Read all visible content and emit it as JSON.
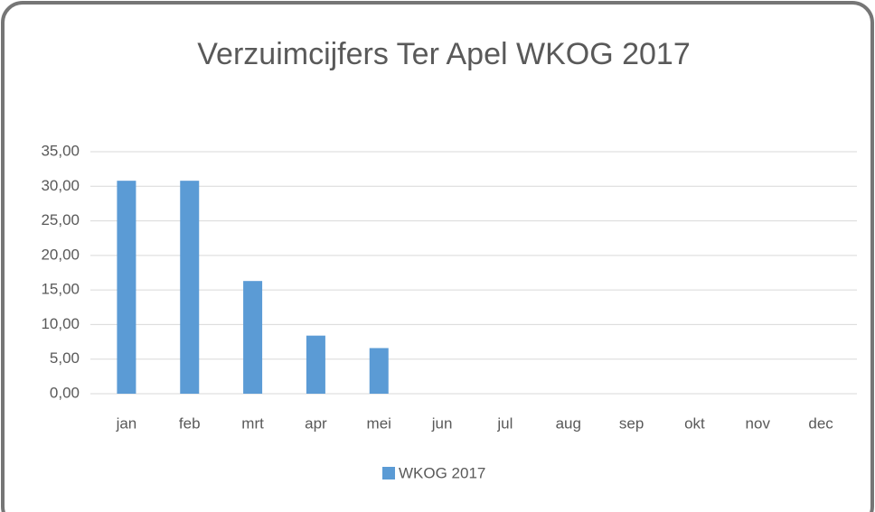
{
  "chart_data": {
    "type": "bar",
    "title": "Verzuimcijfers Ter Apel WKOG 2017",
    "categories": [
      "jan",
      "feb",
      "mrt",
      "apr",
      "mei",
      "jun",
      "jul",
      "aug",
      "sep",
      "okt",
      "nov",
      "dec"
    ],
    "series": [
      {
        "name": "WKOG 2017",
        "color": "#5b9bd5",
        "values": [
          30.8,
          30.8,
          16.3,
          8.4,
          6.6,
          null,
          null,
          null,
          null,
          null,
          null,
          null
        ]
      }
    ],
    "ylim": [
      0,
      35
    ],
    "yticks": [
      {
        "value": 0,
        "label": "0,00"
      },
      {
        "value": 5,
        "label": "5,00"
      },
      {
        "value": 10,
        "label": "10,00"
      },
      {
        "value": 15,
        "label": "15,00"
      },
      {
        "value": 20,
        "label": "20,00"
      },
      {
        "value": 25,
        "label": "25,00"
      },
      {
        "value": 30,
        "label": "30,00"
      },
      {
        "value": 35,
        "label": "35,00"
      }
    ],
    "grid": true,
    "legend": "bottom"
  }
}
